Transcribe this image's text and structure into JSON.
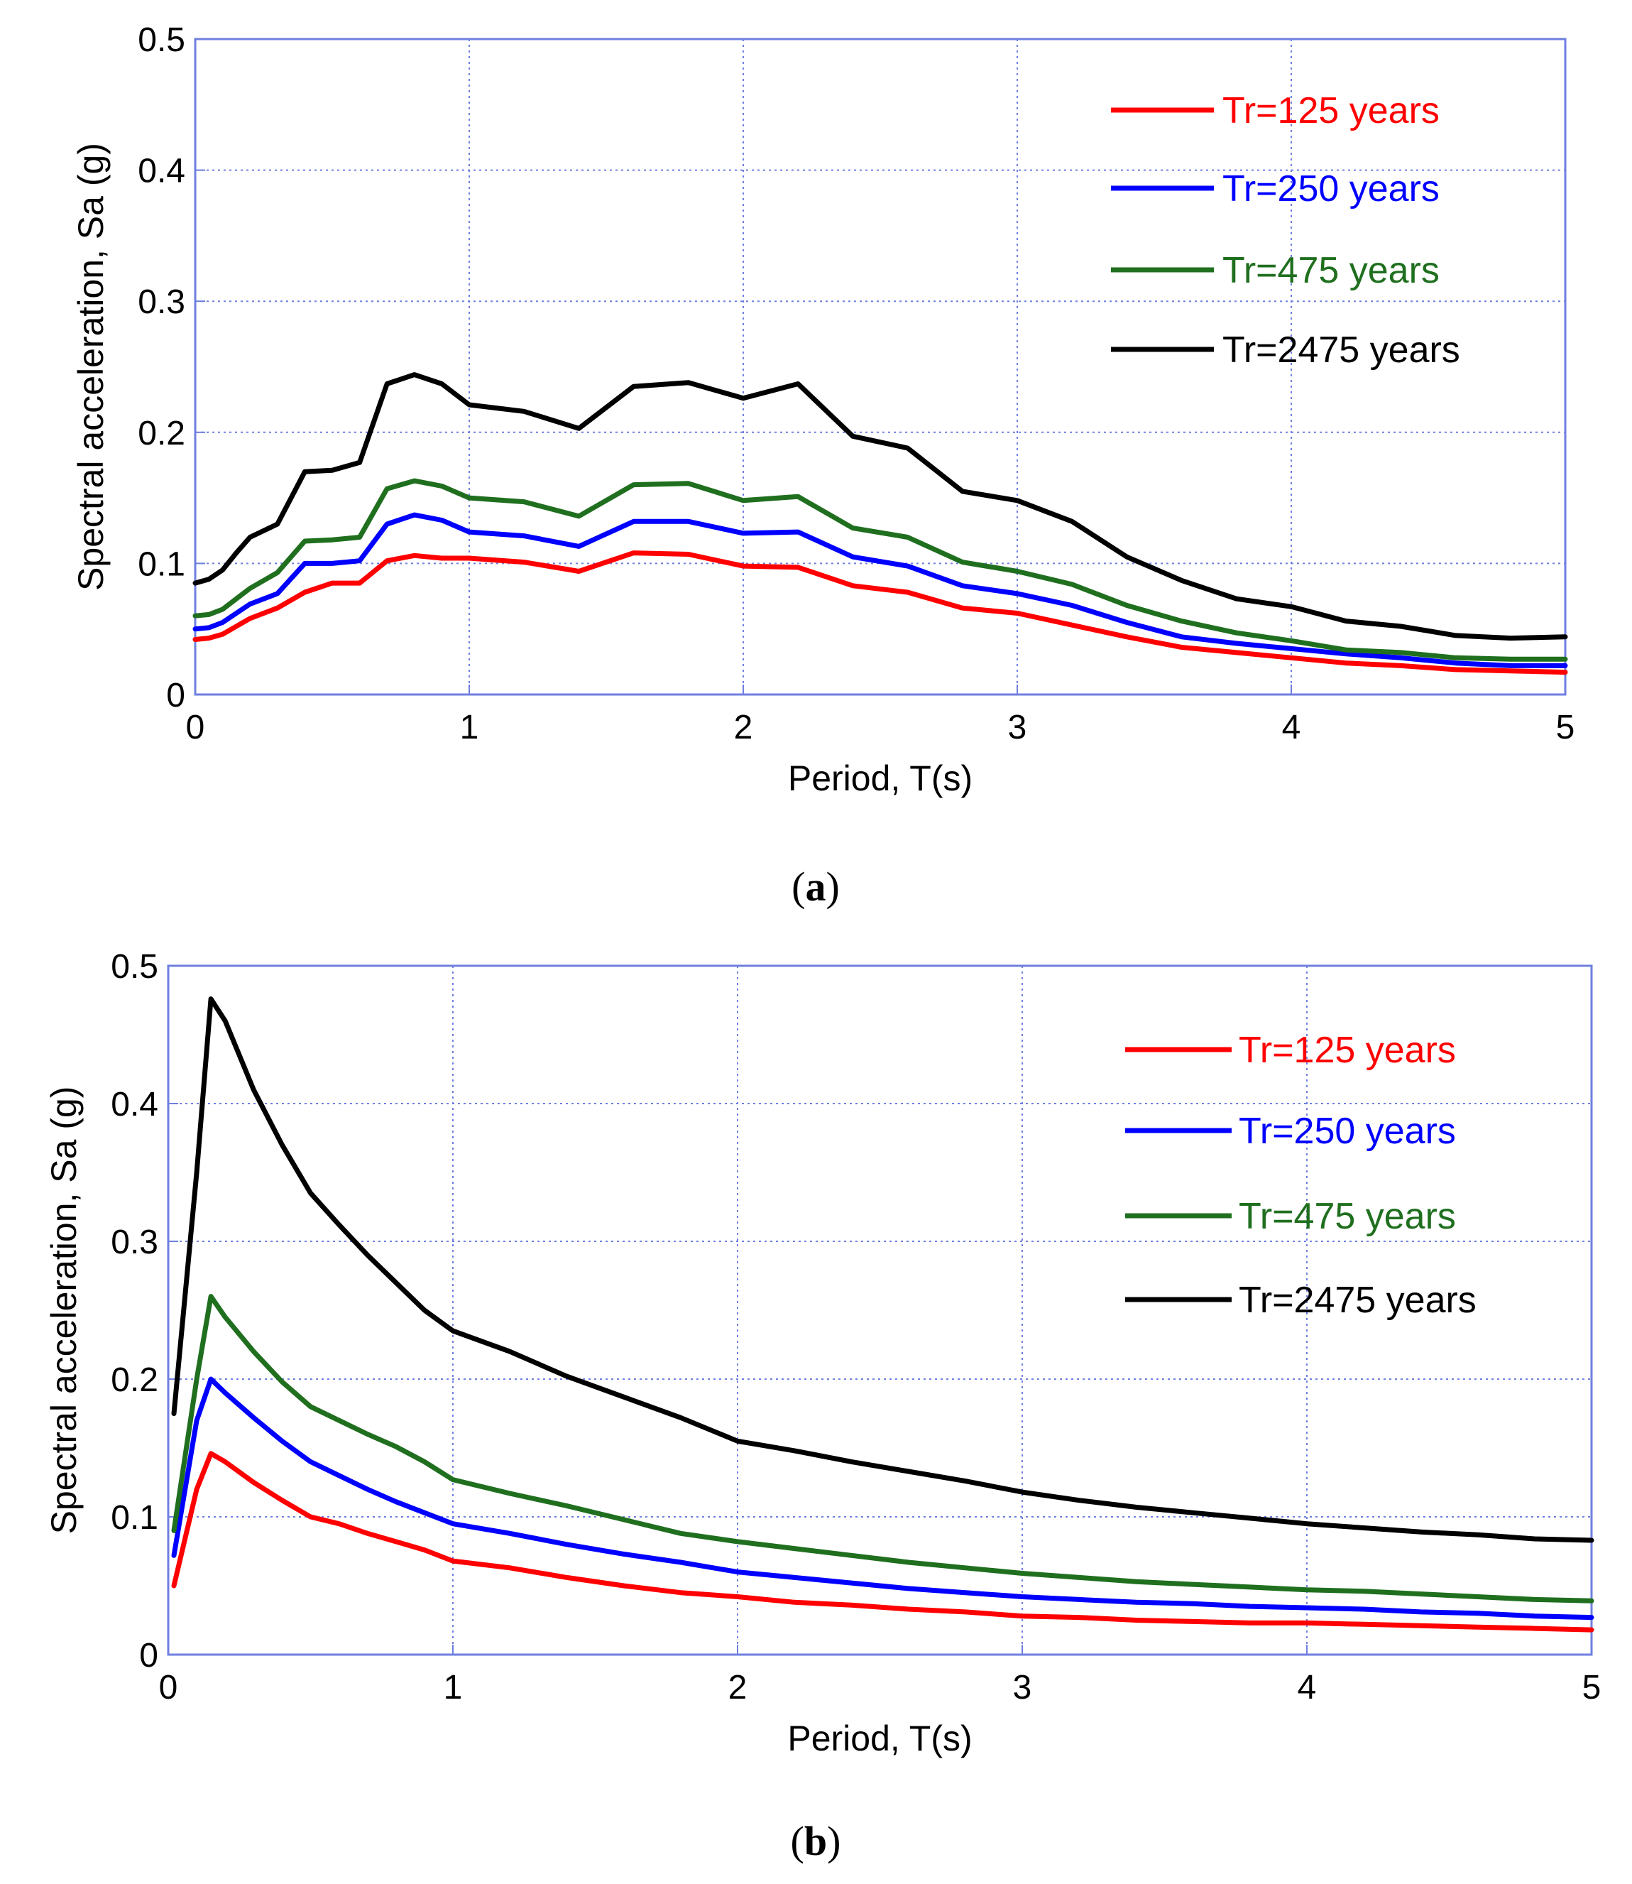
{
  "figure": {
    "panels": [
      {
        "caption_open": "(",
        "caption_letter": "a",
        "caption_close": ")"
      },
      {
        "caption_open": "(",
        "caption_letter": "b",
        "caption_close": ")"
      }
    ]
  },
  "chart_data": [
    {
      "type": "line",
      "title": "",
      "xlabel": "Period, T(s)",
      "ylabel": "Spectral acceleration, Sa (g)",
      "xlim": [
        0,
        5
      ],
      "ylim": [
        0,
        0.5
      ],
      "xticks": [
        0,
        1,
        2,
        3,
        4,
        5
      ],
      "xtick_labels": [
        "0",
        "1",
        "2",
        "3",
        "4",
        "5"
      ],
      "yticks": [
        0,
        0.1,
        0.2,
        0.3,
        0.4,
        0.5
      ],
      "ytick_labels": [
        "0",
        "0.1",
        "0.2",
        "0.3",
        "0.4",
        "0.5"
      ],
      "grid": true,
      "legend_position": "top-right",
      "series": [
        {
          "name": "Tr=125 years",
          "color": "#ff0000",
          "x": [
            0,
            0.05,
            0.1,
            0.15,
            0.2,
            0.3,
            0.4,
            0.5,
            0.6,
            0.7,
            0.8,
            0.9,
            1.0,
            1.2,
            1.4,
            1.6,
            1.8,
            2.0,
            2.2,
            2.4,
            2.6,
            2.8,
            3.0,
            3.2,
            3.4,
            3.6,
            3.8,
            4.0,
            4.2,
            4.4,
            4.6,
            4.8,
            5.0
          ],
          "y": [
            0.042,
            0.043,
            0.046,
            0.052,
            0.058,
            0.066,
            0.078,
            0.085,
            0.085,
            0.102,
            0.106,
            0.104,
            0.104,
            0.101,
            0.094,
            0.108,
            0.107,
            0.098,
            0.097,
            0.083,
            0.078,
            0.066,
            0.062,
            0.053,
            0.044,
            0.036,
            0.032,
            0.028,
            0.024,
            0.022,
            0.019,
            0.018,
            0.017
          ]
        },
        {
          "name": "Tr=250 years",
          "color": "#0000ff",
          "x": [
            0,
            0.05,
            0.1,
            0.15,
            0.2,
            0.3,
            0.4,
            0.5,
            0.6,
            0.7,
            0.8,
            0.9,
            1.0,
            1.2,
            1.4,
            1.6,
            1.8,
            2.0,
            2.2,
            2.4,
            2.6,
            2.8,
            3.0,
            3.2,
            3.4,
            3.6,
            3.8,
            4.0,
            4.2,
            4.4,
            4.6,
            4.8,
            5.0
          ],
          "y": [
            0.05,
            0.051,
            0.055,
            0.062,
            0.069,
            0.077,
            0.1,
            0.1,
            0.102,
            0.13,
            0.137,
            0.133,
            0.124,
            0.121,
            0.113,
            0.132,
            0.132,
            0.123,
            0.124,
            0.105,
            0.098,
            0.083,
            0.077,
            0.068,
            0.055,
            0.044,
            0.039,
            0.035,
            0.031,
            0.028,
            0.024,
            0.022,
            0.022
          ]
        },
        {
          "name": "Tr=475 years",
          "color": "#1f6f1f",
          "x": [
            0,
            0.05,
            0.1,
            0.15,
            0.2,
            0.3,
            0.4,
            0.5,
            0.6,
            0.7,
            0.8,
            0.9,
            1.0,
            1.2,
            1.4,
            1.6,
            1.8,
            2.0,
            2.2,
            2.4,
            2.6,
            2.8,
            3.0,
            3.2,
            3.4,
            3.6,
            3.8,
            4.0,
            4.2,
            4.4,
            4.6,
            4.8,
            5.0
          ],
          "y": [
            0.06,
            0.061,
            0.065,
            0.073,
            0.081,
            0.093,
            0.117,
            0.118,
            0.12,
            0.157,
            0.163,
            0.159,
            0.15,
            0.147,
            0.136,
            0.16,
            0.161,
            0.148,
            0.151,
            0.127,
            0.12,
            0.101,
            0.094,
            0.084,
            0.068,
            0.056,
            0.047,
            0.041,
            0.034,
            0.032,
            0.028,
            0.027,
            0.027
          ]
        },
        {
          "name": "Tr=2475 years",
          "color": "#000000",
          "x": [
            0,
            0.05,
            0.1,
            0.15,
            0.2,
            0.3,
            0.4,
            0.5,
            0.6,
            0.7,
            0.8,
            0.9,
            1.0,
            1.2,
            1.4,
            1.6,
            1.8,
            2.0,
            2.2,
            2.4,
            2.6,
            2.8,
            3.0,
            3.2,
            3.4,
            3.6,
            3.8,
            4.0,
            4.2,
            4.4,
            4.6,
            4.8,
            5.0
          ],
          "y": [
            0.085,
            0.088,
            0.095,
            0.108,
            0.12,
            0.13,
            0.17,
            0.171,
            0.177,
            0.237,
            0.244,
            0.237,
            0.221,
            0.216,
            0.203,
            0.235,
            0.238,
            0.226,
            0.237,
            0.197,
            0.188,
            0.155,
            0.148,
            0.132,
            0.105,
            0.087,
            0.073,
            0.067,
            0.056,
            0.052,
            0.045,
            0.043,
            0.044
          ]
        }
      ]
    },
    {
      "type": "line",
      "title": "",
      "xlabel": "Period, T(s)",
      "ylabel": "Spectral acceleration, Sa (g)",
      "xlim": [
        0,
        5
      ],
      "ylim": [
        0,
        0.5
      ],
      "xticks": [
        0,
        1,
        2,
        3,
        4,
        5
      ],
      "xtick_labels": [
        "0",
        "1",
        "2",
        "3",
        "4",
        "5"
      ],
      "yticks": [
        0,
        0.1,
        0.2,
        0.3,
        0.4,
        0.5
      ],
      "ytick_labels": [
        "0",
        "0.1",
        "0.2",
        "0.3",
        "0.4",
        "0.5"
      ],
      "grid": true,
      "legend_position": "top-right",
      "series": [
        {
          "name": "Tr=125 years",
          "color": "#ff0000",
          "x": [
            0.02,
            0.1,
            0.15,
            0.2,
            0.3,
            0.4,
            0.5,
            0.6,
            0.7,
            0.8,
            0.9,
            1.0,
            1.2,
            1.4,
            1.6,
            1.8,
            2.0,
            2.2,
            2.4,
            2.6,
            2.8,
            3.0,
            3.2,
            3.4,
            3.6,
            3.8,
            4.0,
            4.2,
            4.4,
            4.6,
            4.8,
            5.0
          ],
          "y": [
            0.05,
            0.12,
            0.146,
            0.14,
            0.125,
            0.112,
            0.1,
            0.095,
            0.088,
            0.082,
            0.076,
            0.068,
            0.063,
            0.056,
            0.05,
            0.045,
            0.042,
            0.038,
            0.036,
            0.033,
            0.031,
            0.028,
            0.027,
            0.025,
            0.024,
            0.023,
            0.023,
            0.022,
            0.021,
            0.02,
            0.019,
            0.018
          ]
        },
        {
          "name": "Tr=250 years",
          "color": "#0000ff",
          "x": [
            0.02,
            0.1,
            0.15,
            0.2,
            0.3,
            0.4,
            0.5,
            0.6,
            0.7,
            0.8,
            0.9,
            1.0,
            1.2,
            1.4,
            1.6,
            1.8,
            2.0,
            2.2,
            2.4,
            2.6,
            2.8,
            3.0,
            3.2,
            3.4,
            3.6,
            3.8,
            4.0,
            4.2,
            4.4,
            4.6,
            4.8,
            5.0
          ],
          "y": [
            0.072,
            0.17,
            0.2,
            0.19,
            0.172,
            0.155,
            0.14,
            0.13,
            0.12,
            0.111,
            0.103,
            0.095,
            0.088,
            0.08,
            0.073,
            0.067,
            0.06,
            0.056,
            0.052,
            0.048,
            0.045,
            0.042,
            0.04,
            0.038,
            0.037,
            0.035,
            0.034,
            0.033,
            0.031,
            0.03,
            0.028,
            0.027
          ]
        },
        {
          "name": "Tr=475 years",
          "color": "#1f6f1f",
          "x": [
            0.02,
            0.1,
            0.15,
            0.2,
            0.3,
            0.4,
            0.5,
            0.6,
            0.7,
            0.8,
            0.9,
            1.0,
            1.2,
            1.4,
            1.6,
            1.8,
            2.0,
            2.2,
            2.4,
            2.6,
            2.8,
            3.0,
            3.2,
            3.4,
            3.6,
            3.8,
            4.0,
            4.2,
            4.4,
            4.6,
            4.8,
            5.0
          ],
          "y": [
            0.09,
            0.2,
            0.26,
            0.245,
            0.22,
            0.198,
            0.18,
            0.17,
            0.16,
            0.151,
            0.14,
            0.127,
            0.117,
            0.108,
            0.098,
            0.088,
            0.082,
            0.077,
            0.072,
            0.067,
            0.063,
            0.059,
            0.056,
            0.053,
            0.051,
            0.049,
            0.047,
            0.046,
            0.044,
            0.042,
            0.04,
            0.039
          ]
        },
        {
          "name": "Tr=2475 years",
          "color": "#000000",
          "x": [
            0.02,
            0.1,
            0.15,
            0.2,
            0.3,
            0.4,
            0.5,
            0.6,
            0.7,
            0.8,
            0.9,
            1.0,
            1.2,
            1.4,
            1.6,
            1.8,
            2.0,
            2.2,
            2.4,
            2.6,
            2.8,
            3.0,
            3.2,
            3.4,
            3.6,
            3.8,
            4.0,
            4.2,
            4.4,
            4.6,
            4.8,
            5.0
          ],
          "y": [
            0.175,
            0.35,
            0.476,
            0.46,
            0.41,
            0.37,
            0.335,
            0.312,
            0.29,
            0.27,
            0.25,
            0.235,
            0.22,
            0.202,
            0.187,
            0.172,
            0.155,
            0.148,
            0.14,
            0.133,
            0.126,
            0.118,
            0.112,
            0.107,
            0.103,
            0.099,
            0.095,
            0.092,
            0.089,
            0.087,
            0.084,
            0.083
          ]
        }
      ]
    }
  ]
}
